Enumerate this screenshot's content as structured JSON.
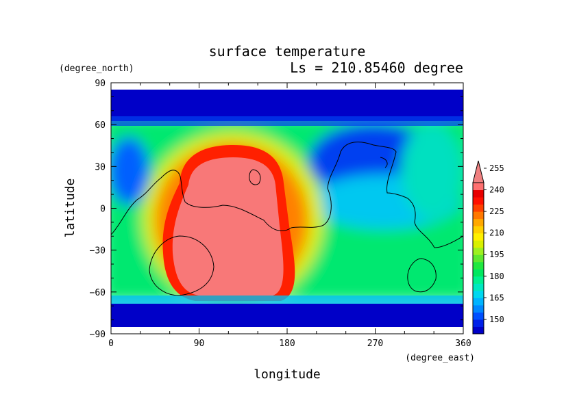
{
  "chart_data": {
    "type": "heatmap",
    "title": "surface temperature",
    "subtitle": "Ls = 210.85460 degree",
    "xlabel": "longitude",
    "ylabel": "latitude",
    "x_unit": "(degree_east)",
    "y_unit": "(degree_north)",
    "xlim": [
      0,
      360
    ],
    "ylim": [
      -90,
      90
    ],
    "x_ticks": [
      0,
      90,
      180,
      270,
      360
    ],
    "y_ticks": [
      90,
      60,
      30,
      0,
      -30,
      -60,
      -90
    ],
    "x_tick_labels": [
      "0",
      "90",
      "180",
      "270",
      "360"
    ],
    "y_tick_labels": [
      "90",
      "60",
      "30",
      "0",
      "−30",
      "−60",
      "−90"
    ],
    "grid": false,
    "data_lat_range": [
      -85,
      85
    ],
    "colorbar": {
      "levels": [
        140,
        145,
        150,
        155,
        160,
        165,
        170,
        175,
        180,
        185,
        190,
        195,
        200,
        205,
        210,
        215,
        220,
        225,
        230,
        235,
        240,
        245,
        250,
        255,
        260
      ],
      "tick_values": [
        150,
        165,
        180,
        195,
        210,
        225,
        240,
        255
      ],
      "tick_labels": [
        "150",
        "165",
        "180",
        "195",
        "210",
        "225",
        "240",
        "255"
      ],
      "colors": [
        "#0000c8",
        "#0020e8",
        "#0050ff",
        "#0088ff",
        "#00b4ff",
        "#00d8f0",
        "#00e8c0",
        "#00f090",
        "#00e860",
        "#20e840",
        "#60e830",
        "#9ef020",
        "#d8f000",
        "#fff000",
        "#ffd000",
        "#ffa800",
        "#ff7800",
        "#ff4000",
        "#ff1000",
        "#e80000",
        "#ff7070"
      ],
      "overflow_color": "#f08080"
    },
    "field_description_points": [
      {
        "lon": 120,
        "lat": -10,
        "value": 262
      },
      {
        "lon": 120,
        "lat": 45,
        "value": 230
      },
      {
        "lon": 45,
        "lat": 0,
        "value": 240
      },
      {
        "lon": 20,
        "lat": 25,
        "value": 165
      },
      {
        "lon": 270,
        "lat": 40,
        "value": 160
      },
      {
        "lon": 300,
        "lat": 0,
        "value": 185
      },
      {
        "lon": 270,
        "lat": -40,
        "value": 195
      },
      {
        "lon": 180,
        "lat": -90,
        "value": 150
      },
      {
        "lon": 180,
        "lat": 80,
        "value": 148
      }
    ]
  }
}
